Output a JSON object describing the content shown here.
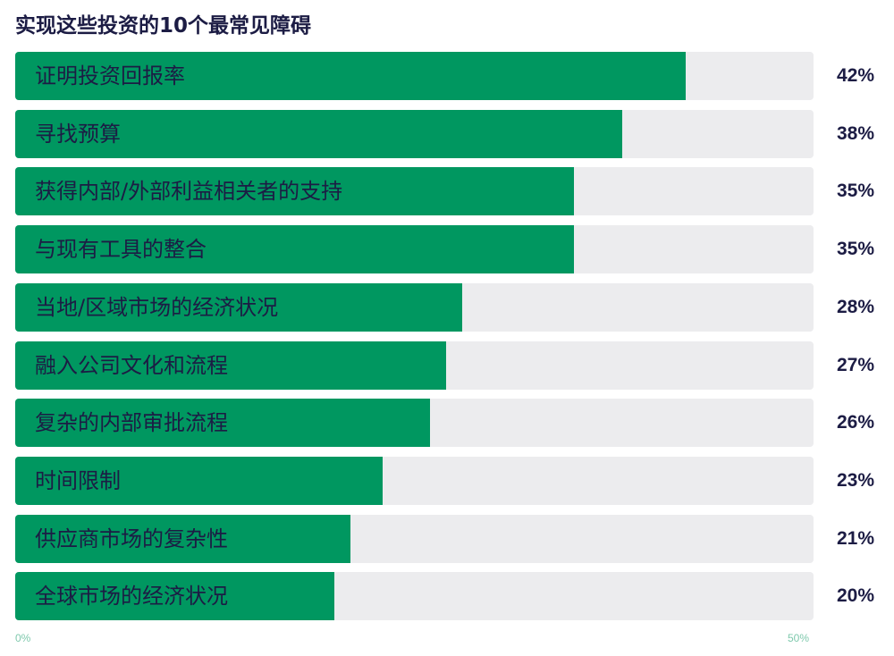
{
  "chart_data": {
    "type": "bar",
    "orientation": "horizontal",
    "title": "实现这些投资的10个最常见障碍",
    "categories": [
      "证明投资回报率",
      "寻找预算",
      "获得内部/外部利益相关者的支持",
      "与现有工具的整合",
      "当地/区域市场的经济状况",
      "融入公司文化和流程",
      "复杂的内部审批流程",
      "时间限制",
      "供应商市场的复杂性",
      "全球市场的经济状况"
    ],
    "values": [
      42,
      38,
      35,
      35,
      28,
      27,
      26,
      23,
      21,
      20
    ],
    "value_labels": [
      "42%",
      "38%",
      "35%",
      "35%",
      "28%",
      "27%",
      "26%",
      "23%",
      "21%",
      "20%"
    ],
    "xlim": [
      0,
      50
    ],
    "x_ticks": [
      "0%",
      "50%"
    ],
    "grid": false,
    "colors": {
      "fill": "#009760",
      "track": "#ececee",
      "text": "#1c1c44",
      "tick": "#7fc9ad"
    }
  }
}
